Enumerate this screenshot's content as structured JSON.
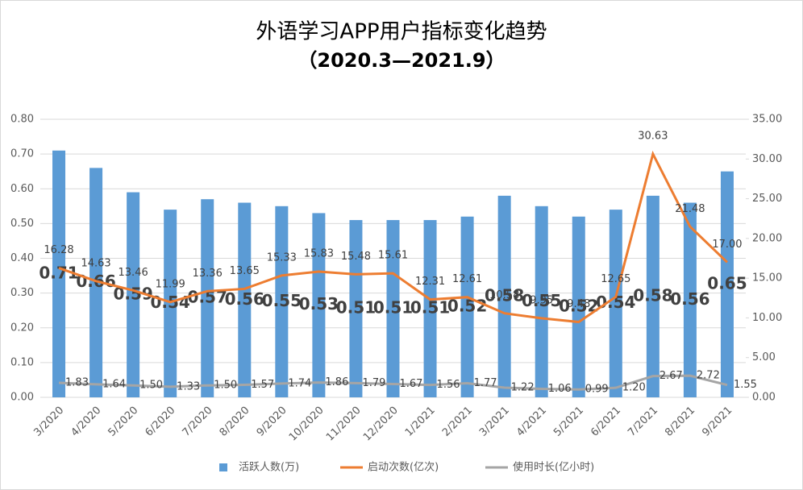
{
  "chart_data": {
    "type": "bar-line",
    "title": "外语学习APP用户指标变化趋势",
    "subtitle": "（2020.3—2021.9）",
    "categories": [
      "3/2020",
      "4/2020",
      "5/2020",
      "6/2020",
      "7/2020",
      "8/2020",
      "9/2020",
      "10/2020",
      "11/2020",
      "12/2020",
      "1/2021",
      "2/2021",
      "3/2021",
      "4/2021",
      "5/2021",
      "6/2021",
      "7/2021",
      "8/2021",
      "9/2021"
    ],
    "series": [
      {
        "name": "活跃人数(万)",
        "color": "#5b9bd5",
        "kind": "bar",
        "axis": "y",
        "values": [
          0.71,
          0.66,
          0.59,
          0.54,
          0.57,
          0.56,
          0.55,
          0.53,
          0.51,
          0.51,
          0.51,
          0.52,
          0.58,
          0.55,
          0.52,
          0.54,
          0.58,
          0.56,
          0.65
        ]
      },
      {
        "name": "启动次数(亿次)",
        "color": "#ed7d31",
        "kind": "line",
        "axis": "y2",
        "values": [
          16.28,
          14.63,
          13.46,
          11.99,
          13.36,
          13.65,
          15.33,
          15.83,
          15.48,
          15.61,
          12.31,
          12.61,
          10.58,
          9.95,
          9.48,
          12.65,
          30.63,
          21.48,
          17
        ],
        "value_labels": [
          "16.28",
          "14.63",
          "13.46",
          "11.99",
          "13.36",
          "13.65",
          "15.33",
          "15.83",
          "15.48",
          "15.61",
          "12.31",
          "12.61",
          "10.58",
          "9.95",
          "9.48",
          "12.65",
          "30.63",
          "21.48",
          "17.00"
        ]
      },
      {
        "name": "使用时长(亿小时)",
        "color": "#a5a5a5",
        "kind": "line",
        "axis": "y2",
        "values": [
          1.83,
          1.64,
          1.5,
          1.33,
          1.5,
          1.57,
          1.74,
          1.86,
          1.79,
          1.67,
          1.56,
          1.77,
          1.22,
          1.06,
          0.99,
          1.2,
          2.67,
          2.72,
          1.55
        ],
        "value_labels": [
          "1.83",
          "1.64",
          "1.50",
          "1.33",
          "1.50",
          "1.57",
          "1.74",
          "1.86",
          "1.79",
          "1.67",
          "1.56",
          "1.77",
          "1.22",
          "1.06",
          "0.99",
          "1.20",
          "2.67",
          "2.72",
          "1.55"
        ]
      }
    ],
    "ylim": [
      0,
      0.8
    ],
    "yticks": [
      {
        "value": 0,
        "label": "0.00"
      },
      {
        "value": 0.1,
        "label": "0.10"
      },
      {
        "value": 0.2,
        "label": "0.20"
      },
      {
        "value": 0.3,
        "label": "0.30"
      },
      {
        "value": 0.4,
        "label": "0.40"
      },
      {
        "value": 0.5,
        "label": "0.50"
      },
      {
        "value": 0.6,
        "label": "0.60"
      },
      {
        "value": 0.7,
        "label": "0.70"
      },
      {
        "value": 0.8,
        "label": "0.80"
      }
    ],
    "y2lim": [
      0,
      35
    ],
    "y2ticks": [
      {
        "value": 0,
        "label": "0.00"
      },
      {
        "value": 5,
        "label": "5.00"
      },
      {
        "value": 10,
        "label": "10.00"
      },
      {
        "value": 15,
        "label": "15.00"
      },
      {
        "value": 20,
        "label": "20.00"
      },
      {
        "value": 25,
        "label": "25.00"
      },
      {
        "value": 30,
        "label": "30.00"
      },
      {
        "value": 35,
        "label": "35.00"
      }
    ],
    "legend": "bottom"
  }
}
